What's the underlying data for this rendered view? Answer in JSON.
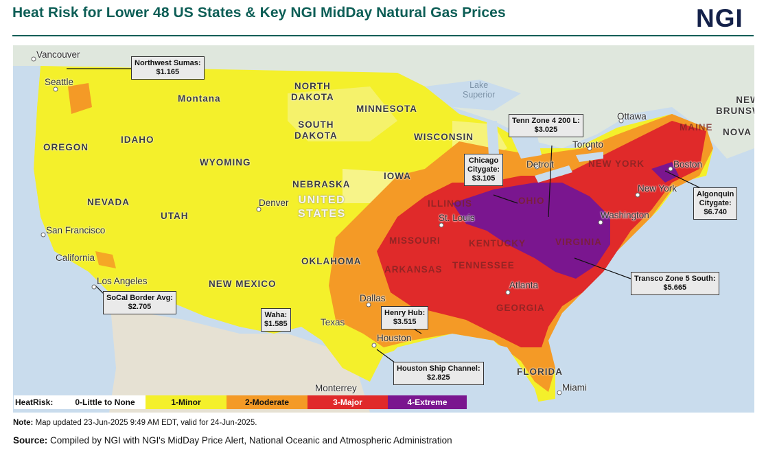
{
  "header": {
    "title": "Heat Risk for Lower 48 US States & Key NGI MidDay Natural Gas Prices",
    "logo_text": "NGI"
  },
  "map": {
    "cities": [
      {
        "name": "Vancouver",
        "key": "vancouver"
      },
      {
        "name": "Seattle",
        "key": "seattle"
      },
      {
        "name": "San Francisco",
        "key": "san-francisco"
      },
      {
        "name": "Los Angeles",
        "key": "los-angeles"
      },
      {
        "name": "Denver",
        "key": "denver"
      },
      {
        "name": "Dallas",
        "key": "dallas"
      },
      {
        "name": "Houston",
        "key": "houston"
      },
      {
        "name": "Monterrey",
        "key": "monterrey"
      },
      {
        "name": "St. Louis",
        "key": "st-louis"
      },
      {
        "name": "Detroit",
        "key": "detroit"
      },
      {
        "name": "Toronto",
        "key": "toronto"
      },
      {
        "name": "Ottawa",
        "key": "ottawa"
      },
      {
        "name": "Boston",
        "key": "boston"
      },
      {
        "name": "New York",
        "key": "new-york-city"
      },
      {
        "name": "Washington",
        "key": "washington"
      },
      {
        "name": "Atlanta",
        "key": "atlanta"
      },
      {
        "name": "Miami",
        "key": "miami"
      }
    ],
    "states": {
      "montana": "Montana",
      "north_dakota": "NORTH\nDAKOTA",
      "minnesota": "MINNESOTA",
      "south_dakota": "SOUTH\nDAKOTA",
      "oregon": "OREGON",
      "idaho": "IDAHO",
      "wyoming": "WYOMING",
      "wisconsin": "WISCONSIN",
      "nebraska": "NEBRASKA",
      "iowa": "IOWA",
      "nevada": "NEVADA",
      "utah": "UTAH",
      "illinois": "ILLINOIS",
      "ohio": "OHIO",
      "california": "California",
      "missouri": "MISSOURI",
      "kentucky": "KENTUCKY",
      "virginia": "VIRGINIA",
      "oklahoma": "OKLAHOMA",
      "arkansas": "ARKANSAS",
      "tennessee": "TENNESSEE",
      "new_mexico": "NEW MEXICO",
      "texas": "Texas",
      "georgia": "GEORGIA",
      "florida": "FLORIDA",
      "new_york_state": "NEW YORK",
      "maine": "MAINE",
      "new_brunswick": "NEW\nBRUNSWICK",
      "nova": "NOVA"
    },
    "country_label": "UNITED\nSTATES",
    "water_label": "Lake\nSuperior",
    "callouts": {
      "northwest_sumas": {
        "name": "Northwest Sumas:",
        "price": "$1.165"
      },
      "socal_border": {
        "name": "SoCal Border Avg:",
        "price": "$2.705"
      },
      "waha": {
        "name": "Waha:",
        "price": "$1.585"
      },
      "henry_hub": {
        "name": "Henry Hub:",
        "price": "$3.515"
      },
      "houston_ship": {
        "name": "Houston Ship Channel:",
        "price": "$2.825"
      },
      "chicago": {
        "name_1": "Chicago",
        "name_2": "Citygate:",
        "price": "$3.105"
      },
      "tenn_zone4": {
        "name": "Tenn Zone 4 200 L:",
        "price": "$3.025"
      },
      "algonquin": {
        "name_1": "Algonquin",
        "name_2": "Citygate:",
        "price": "$6.740"
      },
      "transco_z5": {
        "name": "Transco Zone 5 South:",
        "price": "$5.665"
      }
    }
  },
  "legend": {
    "title": "HeatRisk:",
    "items": [
      {
        "label": "0-Little to None",
        "color": "#ffffff",
        "text_color": "#111111"
      },
      {
        "label": "1-Minor",
        "color": "#f4f02b",
        "text_color": "#111111"
      },
      {
        "label": "2-Moderate",
        "color": "#f49a26",
        "text_color": "#111111"
      },
      {
        "label": "3-Major",
        "color": "#e02a2a",
        "text_color": "#ffffff"
      },
      {
        "label": "4-Extreme",
        "color": "#7a168f",
        "text_color": "#ffffff"
      }
    ]
  },
  "colors": {
    "minor": "#f4f02b",
    "moderate": "#f49a26",
    "major": "#e02a2a",
    "extreme": "#7a168f",
    "water": "#c9dced",
    "canada": "#dfe7dd",
    "mexico": "#e6e1d3"
  },
  "footer": {
    "note_label": "Note:",
    "note_text": " Map updated 23-Jun-2025 9:49 AM EDT, valid for 24-Jun-2025.",
    "source_label": "Source:",
    "source_text": " Compiled by NGI with NGI's MidDay Price Alert, National Oceanic and Atmospheric Administration"
  }
}
